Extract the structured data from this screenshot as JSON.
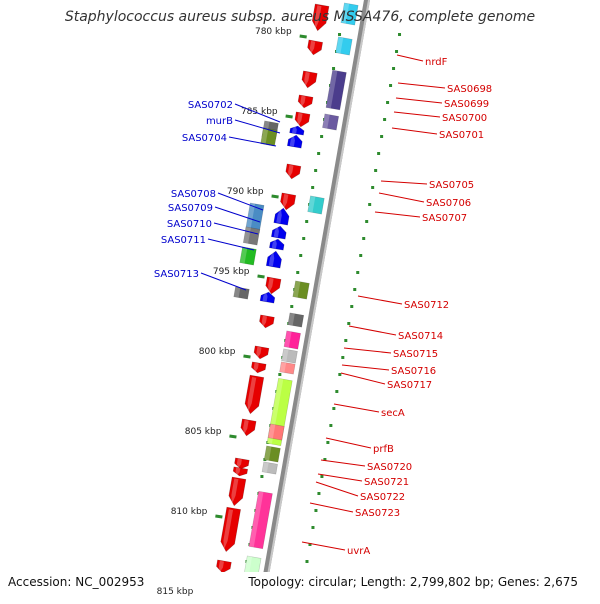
{
  "title": "Staphylococcus aureus subsp. aureus MSSA476, complete genome",
  "footer": {
    "accession": "Accession: NC_002953",
    "summary": "Topology: circular; Length: 2,799,802 bp; Genes: 2,675"
  },
  "colors": {
    "backbone": "#8a8a8a",
    "tick": "#2e8b2e",
    "forward_label": "#0000cc",
    "reverse_label": "#d40000"
  },
  "scale": {
    "ticks": [
      "780 kbp",
      "785 kbp",
      "790 kbp",
      "795 kbp",
      "800 kbp",
      "805 kbp",
      "810 kbp",
      "815 kbp"
    ]
  },
  "forward_labels": [
    "SAS0702",
    "murB",
    "SAS0704",
    "SAS0708",
    "SAS0709",
    "SAS0710",
    "SAS0711",
    "SAS0713"
  ],
  "reverse_labels": [
    "nrdF",
    "SAS0698",
    "SAS0699",
    "SAS0700",
    "SAS0701",
    "SAS0705",
    "SAS0706",
    "SAS0707",
    "SAS0712",
    "SAS0714",
    "SAS0715",
    "SAS0716",
    "SAS0717",
    "secA",
    "prfB",
    "SAS0720",
    "SAS0721",
    "SAS0722",
    "SAS0723",
    "uvrA"
  ]
}
